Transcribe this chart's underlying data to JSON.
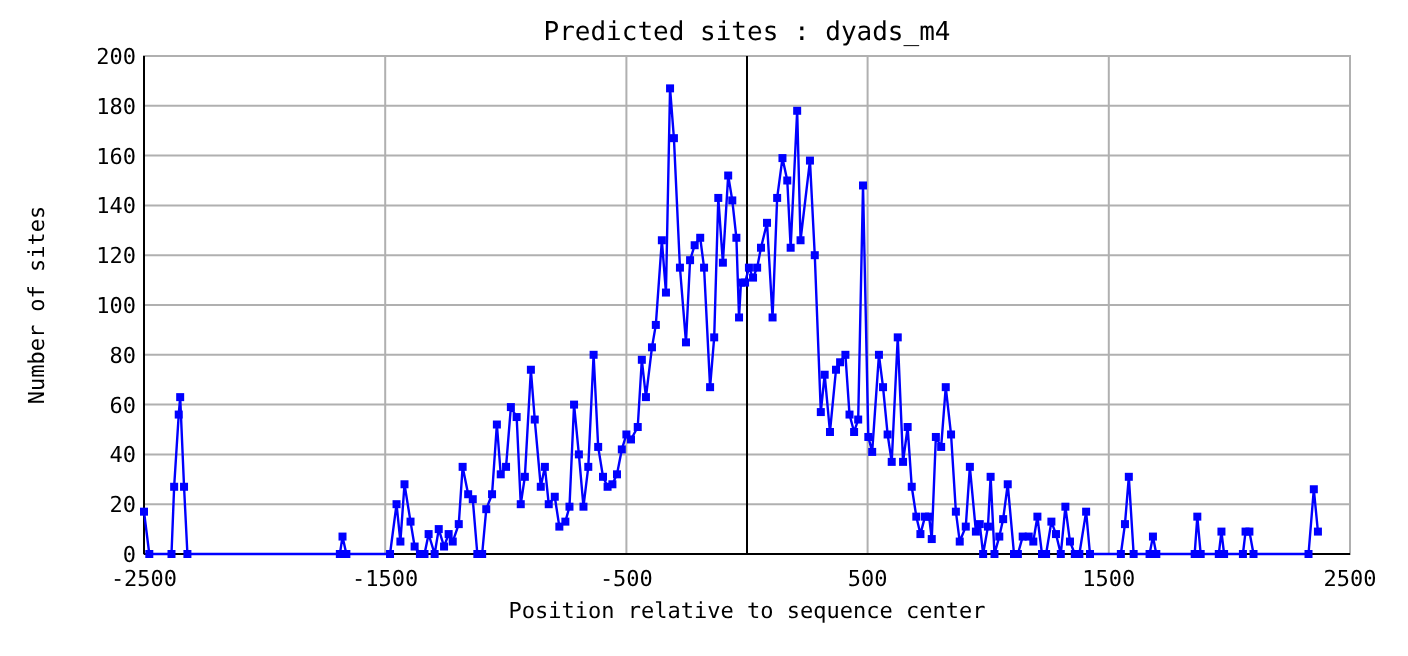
{
  "chart_data": {
    "type": "line",
    "title": "Predicted sites : dyads_m4",
    "xlabel": "Position relative to sequence center",
    "ylabel": "Number of sites",
    "xlim": [
      -2500,
      2500
    ],
    "xticks": [
      -2500,
      -1500,
      -500,
      500,
      1500,
      2500
    ],
    "ylim": [
      0,
      200
    ],
    "yticks": [
      0,
      20,
      40,
      60,
      80,
      100,
      120,
      140,
      160,
      180,
      200
    ],
    "grid": true,
    "marker": "square",
    "line_style": "solid",
    "ref_lines": [
      {
        "axis": "x",
        "value": 0,
        "color": "#000000"
      }
    ],
    "series": [
      {
        "color": "#0000ff",
        "x": [
          -2500,
          -2478,
          -2386,
          -2375,
          -2356,
          -2350,
          -2334,
          -2320,
          -1688,
          -1677,
          -1661,
          -1480,
          -1453,
          -1437,
          -1420,
          -1395,
          -1378,
          -1356,
          -1337,
          -1320,
          -1295,
          -1278,
          -1256,
          -1237,
          -1220,
          -1195,
          -1179,
          -1156,
          -1137,
          -1118,
          -1098,
          -1081,
          -1057,
          -1037,
          -1021,
          -999,
          -979,
          -955,
          -938,
          -921,
          -896,
          -880,
          -855,
          -838,
          -822,
          -797,
          -778,
          -753,
          -736,
          -717,
          -697,
          -678,
          -658,
          -636,
          -617,
          -597,
          -578,
          -558,
          -539,
          -519,
          -500,
          -481,
          -453,
          -436,
          -419,
          -394,
          -378,
          -353,
          -336,
          -319,
          -303,
          -278,
          -253,
          -236,
          -217,
          -194,
          -178,
          -153,
          -136,
          -119,
          -100,
          -78,
          -61,
          -44,
          -33,
          -25,
          -8,
          8,
          25,
          42,
          58,
          83,
          106,
          125,
          147,
          167,
          181,
          208,
          222,
          261,
          281,
          306,
          322,
          344,
          369,
          386,
          408,
          425,
          444,
          461,
          481,
          503,
          519,
          547,
          564,
          583,
          600,
          625,
          647,
          666,
          683,
          702,
          719,
          738,
          755,
          766,
          783,
          805,
          824,
          846,
          866,
          882,
          907,
          924,
          949,
          965,
          979,
          999,
          1010,
          1026,
          1046,
          1062,
          1081,
          1107,
          1123,
          1143,
          1168,
          1187,
          1204,
          1223,
          1240,
          1262,
          1281,
          1301,
          1320,
          1339,
          1359,
          1378,
          1406,
          1422,
          1550,
          1567,
          1583,
          1603,
          1669,
          1683,
          1697,
          1856,
          1867,
          1881,
          1956,
          1967,
          1978,
          2056,
          2067,
          2083,
          2100,
          2328,
          2350,
          2367
        ],
        "values": [
          17,
          0,
          0,
          27,
          56,
          63,
          27,
          0,
          0,
          7,
          0,
          0,
          20,
          5,
          28,
          13,
          3,
          0,
          0,
          8,
          0,
          10,
          3,
          8,
          5,
          12,
          35,
          24,
          22,
          0,
          0,
          18,
          24,
          52,
          32,
          35,
          59,
          55,
          20,
          31,
          74,
          54,
          27,
          35,
          20,
          23,
          11,
          13,
          19,
          60,
          40,
          19,
          35,
          80,
          43,
          31,
          27,
          28,
          32,
          42,
          48,
          46,
          51,
          78,
          63,
          83,
          92,
          126,
          105,
          187,
          167,
          115,
          85,
          118,
          124,
          127,
          115,
          67,
          87,
          143,
          117,
          152,
          142,
          127,
          95,
          109,
          109,
          115,
          111,
          115,
          123,
          133,
          95,
          143,
          159,
          150,
          123,
          178,
          126,
          158,
          120,
          57,
          72,
          49,
          74,
          77,
          80,
          56,
          49,
          54,
          148,
          47,
          41,
          80,
          67,
          48,
          37,
          87,
          37,
          51,
          27,
          15,
          8,
          15,
          15,
          6,
          47,
          43,
          67,
          48,
          17,
          5,
          11,
          35,
          9,
          12,
          0,
          11,
          31,
          0,
          7,
          14,
          28,
          0,
          0,
          7,
          7,
          5,
          15,
          0,
          0,
          13,
          8,
          0,
          19,
          5,
          0,
          0,
          17,
          0,
          0,
          12,
          31,
          0,
          0,
          7,
          0,
          0,
          15,
          0,
          0,
          9,
          0,
          0,
          9,
          9,
          0,
          0,
          26,
          9
        ]
      }
    ]
  }
}
